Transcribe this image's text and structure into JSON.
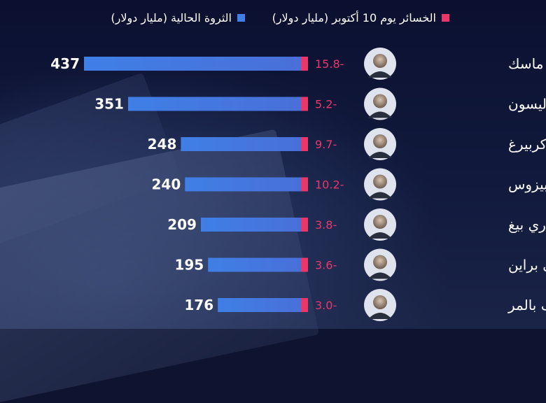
{
  "legend": {
    "loss_label": "الخسائر يوم 10 أكتوبر (مليار دولار)",
    "wealth_label": "الثروة الحالية (مليار دولار)",
    "loss_color": "#e8386a",
    "wealth_color": "#3f7fe6"
  },
  "chart_data": {
    "type": "bar",
    "orientation": "horizontal",
    "categories": [
      "إيلون ماسك",
      "لاري إليسون",
      "مارك زوكربيرغ",
      "جيف بيزوس",
      "لاري بيغ",
      "سيرغي براين",
      "ستيف بالمر"
    ],
    "series": [
      {
        "name": "الثروة الحالية (مليار دولار)",
        "values": [
          437,
          351,
          248,
          240,
          209,
          195,
          176
        ]
      },
      {
        "name": "الخسائر يوم 10 أكتوبر (مليار دولار)",
        "values": [
          15.8,
          5.2,
          9.7,
          10.2,
          3.8,
          3.6,
          3.0
        ]
      }
    ],
    "loss_labels": [
      "15.8-",
      "5.2-",
      "9.7-",
      "10.2-",
      "3.8-",
      "3.6-",
      "3.0-"
    ],
    "value_labels": [
      "437",
      "351",
      "248",
      "240",
      "209",
      "195",
      "176"
    ],
    "colors": {
      "wealth": "#3f7fe6",
      "loss": "#e8386a"
    },
    "legend_position": "top",
    "grid": false
  }
}
